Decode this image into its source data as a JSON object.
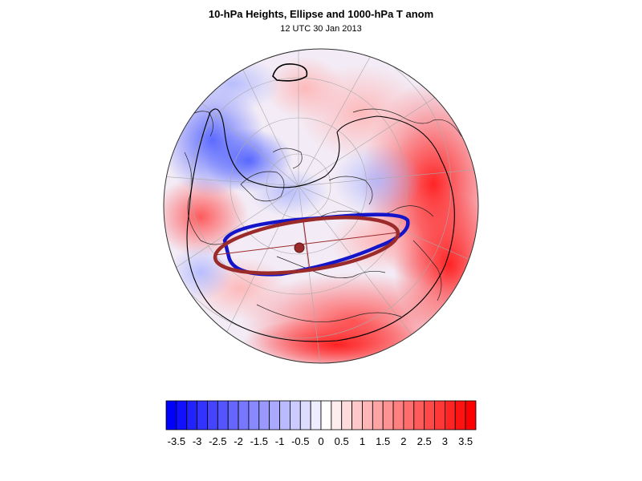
{
  "header": {
    "title": "10-hPa Heights, Ellipse and 1000-hPa T anom",
    "subtitle": "12 UTC 30 Jan 2013"
  },
  "map": {
    "projection": "polar-stereographic-north",
    "contours": [
      "10-hPa geopotential height"
    ],
    "ellipse_color": "#9b2b2b",
    "blue_contour_color": "#1010c8"
  },
  "colorbar": {
    "tick_labels": [
      "-3.5",
      "-3",
      "-2.5",
      "-2",
      "-1.5",
      "-1",
      "-0.5",
      "0",
      "0.5",
      "1",
      "1.5",
      "2",
      "2.5",
      "3",
      "3.5"
    ],
    "min_color": "#0000ff",
    "mid_color": "#ffffff",
    "max_color": "#ff0000"
  }
}
